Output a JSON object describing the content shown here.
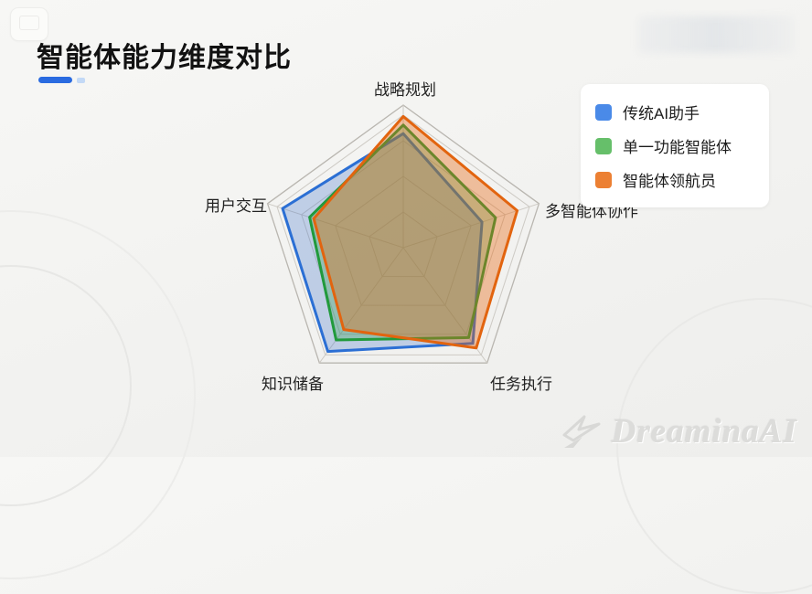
{
  "header": {
    "title": "智能体能力维度对比"
  },
  "legend": {
    "items": [
      {
        "label": "传统AI助手",
        "color": "#4a8ae8"
      },
      {
        "label": "单一功能智能体",
        "color": "#66bf6a"
      },
      {
        "label": "智能体领航员",
        "color": "#ec8033"
      }
    ]
  },
  "chart_data": {
    "type": "radar",
    "title": "智能体能力维度对比",
    "categories": [
      "战略规划",
      "多智能体协作",
      "任务执行",
      "知识储备",
      "用户交互"
    ],
    "max": 100,
    "rings": [
      25,
      50,
      75,
      93,
      100
    ],
    "grid": true,
    "legend_position": "top-right",
    "series": [
      {
        "name": "传统AI助手",
        "color": "#2b6fd4",
        "fill": "rgba(59,113,202,0.28)",
        "values": [
          80,
          58,
          83,
          90,
          89
        ]
      },
      {
        "name": "单一功能智能体",
        "color": "#219a3c",
        "fill": "rgba(46,160,67,0.30)",
        "values": [
          86,
          68,
          78,
          80,
          69
        ]
      },
      {
        "name": "智能体领航员",
        "color": "#e2640f",
        "fill": "rgba(232,102,15,0.38)",
        "values": [
          92,
          84,
          87,
          71,
          66
        ]
      }
    ]
  },
  "watermark": {
    "brand": "DreaminaAI"
  },
  "colors": {
    "accent_blue": "#2a6be0",
    "grid_line": "#cdcac4",
    "background": "#f2f2f0"
  }
}
